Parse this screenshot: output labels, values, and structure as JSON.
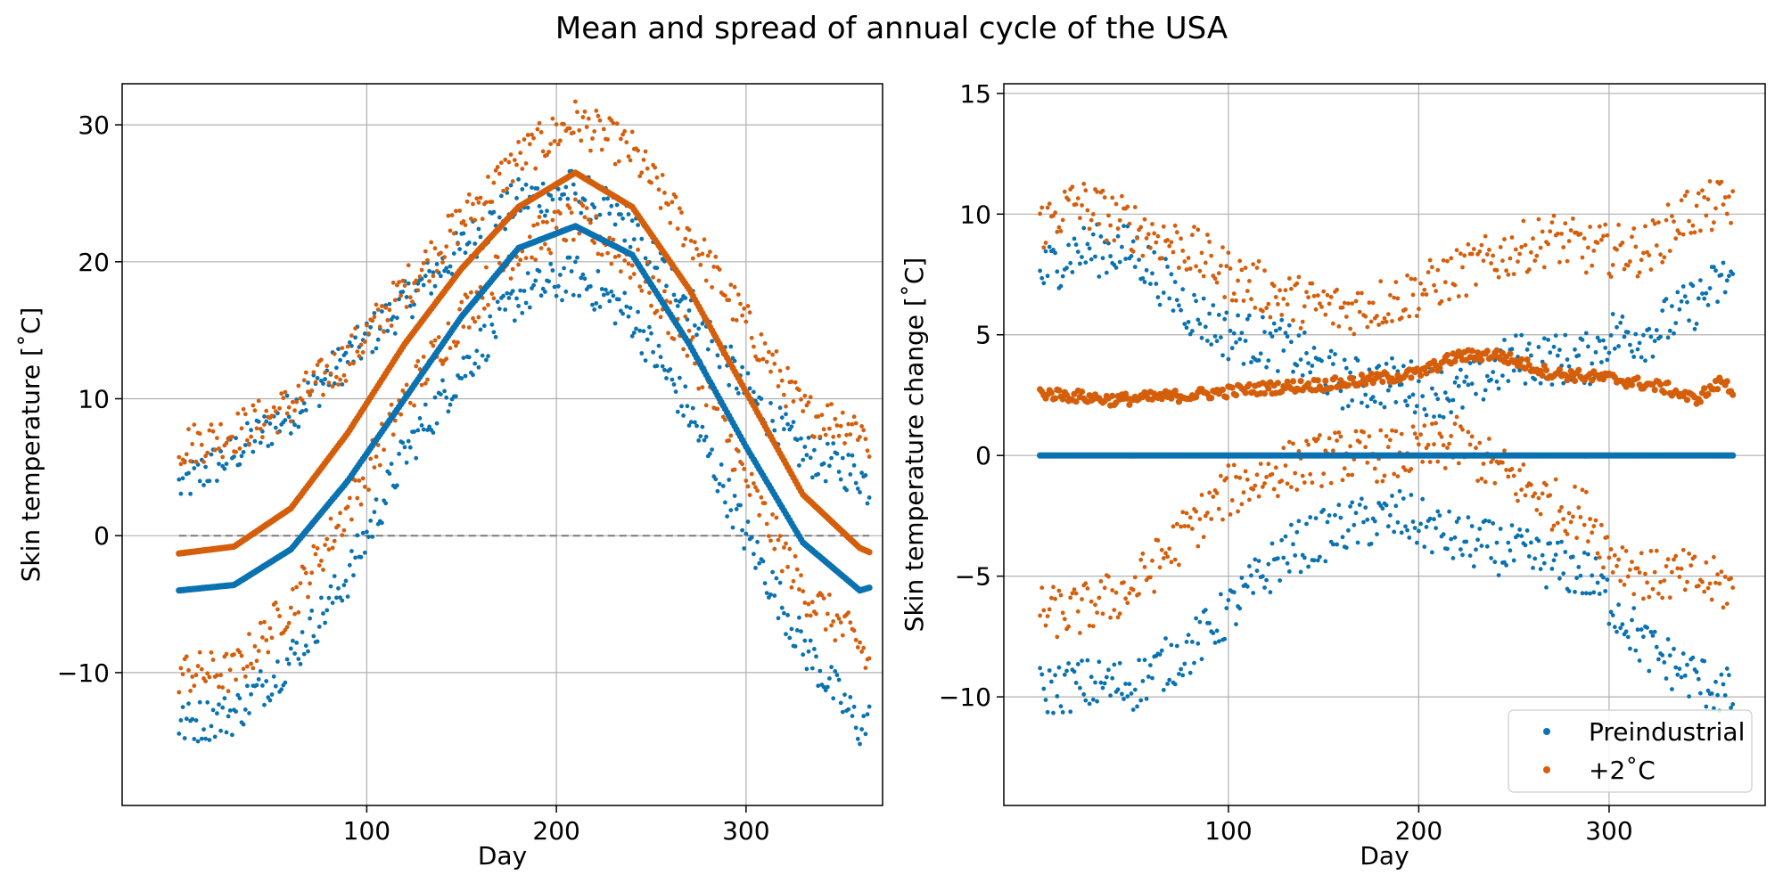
{
  "title": "Mean and spread of annual cycle of the USA",
  "colors": {
    "preindustrial": "#0a72b0",
    "warming": "#d55e0b",
    "grid": "#b0b0b0",
    "zero_line": "#7a7a7a"
  },
  "legend": {
    "placement": "lower right",
    "entries": [
      "Preindustrial",
      "+2˚C"
    ]
  },
  "chart_data": [
    {
      "type": "scatter",
      "panel": "left",
      "xlabel": "Day",
      "ylabel": "Skin temperature [˚C]",
      "xlim": [
        -29,
        372
      ],
      "ylim": [
        -19.7,
        33
      ],
      "xticks": [
        100,
        200,
        300
      ],
      "yticks": [
        -10,
        0,
        10,
        20,
        30
      ],
      "xtick_labels": [
        "100",
        "200",
        "300"
      ],
      "ytick_labels": [
        "−10",
        "0",
        "10",
        "20",
        "30"
      ],
      "grid": true,
      "zero_line": "dashed",
      "series": [
        {
          "name": "Preindustrial",
          "color": "#0a72b0",
          "role": "mean",
          "x": [
            1,
            30,
            60,
            90,
            120,
            150,
            180,
            210,
            240,
            270,
            300,
            330,
            360,
            365
          ],
          "y": [
            -4,
            -3.6,
            -1,
            4,
            10,
            16,
            21,
            22.6,
            20.5,
            14,
            6.5,
            -0.5,
            -4,
            -3.8
          ]
        },
        {
          "name": "+2˚C",
          "color": "#d55e0b",
          "role": "mean",
          "x": [
            1,
            30,
            60,
            90,
            120,
            150,
            180,
            210,
            240,
            270,
            300,
            330,
            360,
            365
          ],
          "y": [
            -1.3,
            -0.8,
            2,
            7.5,
            14,
            19.5,
            24,
            26.5,
            24,
            18,
            10.5,
            3,
            -0.9,
            -1.2
          ]
        },
        {
          "name": "Preindustrial",
          "color": "#0a72b0",
          "role": "upper",
          "x": [
            1,
            30,
            60,
            90,
            120,
            150,
            180,
            210,
            240,
            270,
            300,
            330,
            360,
            365
          ],
          "y": [
            3.6,
            6,
            9,
            13,
            17,
            21,
            24.5,
            25.3,
            22.5,
            17,
            10.5,
            6,
            4.5,
            3.5
          ]
        },
        {
          "name": "Preindustrial",
          "color": "#0a72b0",
          "role": "lower",
          "x": [
            1,
            30,
            60,
            90,
            120,
            150,
            180,
            210,
            240,
            270,
            300,
            330,
            360,
            365
          ],
          "y": [
            -13.8,
            -13,
            -9,
            -3,
            6,
            12,
            17.5,
            19,
            16,
            9,
            0,
            -8,
            -14,
            -13.7
          ]
        },
        {
          "name": "+2˚C",
          "color": "#d55e0b",
          "role": "upper",
          "x": [
            1,
            30,
            60,
            90,
            120,
            150,
            180,
            210,
            240,
            270,
            300,
            330,
            360,
            365
          ],
          "y": [
            6.5,
            7.5,
            9.5,
            13,
            18,
            23,
            27.5,
            30.3,
            28,
            22,
            15.5,
            9,
            8,
            6.5
          ]
        },
        {
          "name": "+2˚C",
          "color": "#d55e0b",
          "role": "lower",
          "x": [
            1,
            30,
            60,
            90,
            120,
            150,
            180,
            210,
            240,
            270,
            300,
            330,
            360,
            365
          ],
          "y": [
            -10,
            -10,
            -5,
            2,
            10,
            16,
            21,
            23,
            20,
            14,
            4,
            -4,
            -8,
            -9.5
          ]
        }
      ]
    },
    {
      "type": "scatter",
      "panel": "right",
      "xlabel": "Day",
      "ylabel": "Skin temperature change [˚C]",
      "xlim": [
        -18,
        382
      ],
      "ylim": [
        -14.5,
        15.4
      ],
      "xticks": [
        100,
        200,
        300
      ],
      "yticks": [
        -10,
        -5,
        0,
        5,
        10,
        15
      ],
      "xtick_labels": [
        "100",
        "200",
        "300"
      ],
      "ytick_labels": [
        "−10",
        "−5",
        "0",
        "5",
        "10",
        "15"
      ],
      "grid": true,
      "series": [
        {
          "name": "Preindustrial",
          "color": "#0a72b0",
          "role": "mean",
          "x": [
            1,
            365
          ],
          "y": [
            0,
            0
          ]
        },
        {
          "name": "+2˚C",
          "color": "#d55e0b",
          "role": "mean",
          "x": [
            1,
            40,
            80,
            120,
            160,
            200,
            220,
            240,
            270,
            300,
            330,
            345,
            360,
            365
          ],
          "y": [
            2.6,
            2.3,
            2.5,
            2.8,
            3,
            3.4,
            4.1,
            4.2,
            3.4,
            3.2,
            2.8,
            2.3,
            3.1,
            2.6
          ]
        },
        {
          "name": "Preindustrial",
          "color": "#0a72b0",
          "role": "upper",
          "x": [
            1,
            20,
            50,
            80,
            100,
            130,
            160,
            190,
            220,
            250,
            270,
            290,
            300,
            320,
            340,
            365
          ],
          "y": [
            7.5,
            8.5,
            8.5,
            6,
            5,
            4.5,
            3,
            3,
            2.5,
            4,
            4,
            4,
            5,
            5,
            6,
            7.5
          ]
        },
        {
          "name": "Preindustrial",
          "color": "#0a72b0",
          "role": "lower",
          "x": [
            1,
            20,
            50,
            80,
            100,
            130,
            160,
            190,
            220,
            250,
            270,
            290,
            300,
            320,
            340,
            365
          ],
          "y": [
            -9.8,
            -9.5,
            -9.5,
            -8,
            -6.5,
            -4,
            -3,
            -2.5,
            -3.5,
            -4,
            -4.5,
            -5,
            -6,
            -8,
            -9,
            -10
          ]
        },
        {
          "name": "+2˚C",
          "color": "#d55e0b",
          "role": "upper",
          "x": [
            1,
            20,
            50,
            80,
            100,
            130,
            160,
            190,
            220,
            250,
            270,
            290,
            300,
            320,
            340,
            365
          ],
          "y": [
            9.5,
            10.5,
            9.5,
            8.5,
            7.5,
            6.5,
            6,
            6.5,
            7.5,
            8.5,
            9,
            8.5,
            8.5,
            8.5,
            10,
            10.5
          ]
        },
        {
          "name": "+2˚C",
          "color": "#d55e0b",
          "role": "lower",
          "x": [
            1,
            20,
            50,
            80,
            100,
            130,
            160,
            190,
            220,
            250,
            270,
            290,
            300,
            320,
            340,
            365
          ],
          "y": [
            -6.5,
            -6.5,
            -5.5,
            -3,
            -1.5,
            -0.5,
            0,
            0,
            0.5,
            -1,
            -2,
            -2.5,
            -4,
            -5,
            -5,
            -5.5
          ]
        }
      ]
    }
  ]
}
